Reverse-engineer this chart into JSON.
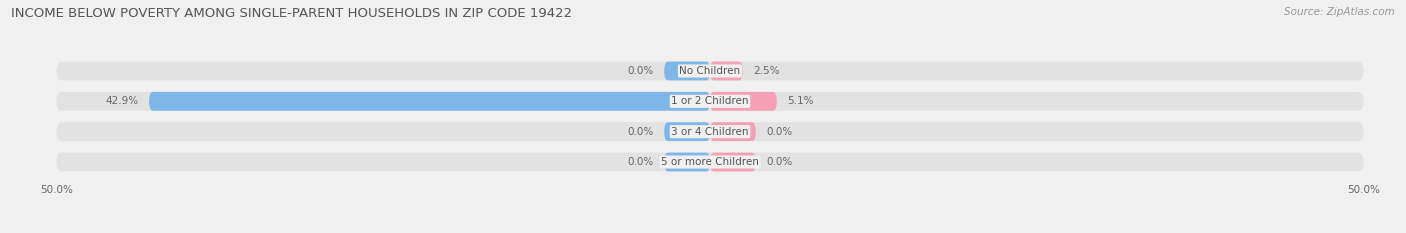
{
  "title": "INCOME BELOW POVERTY AMONG SINGLE-PARENT HOUSEHOLDS IN ZIP CODE 19422",
  "source": "Source: ZipAtlas.com",
  "categories": [
    "No Children",
    "1 or 2 Children",
    "3 or 4 Children",
    "5 or more Children"
  ],
  "single_father": [
    0.0,
    42.9,
    0.0,
    0.0
  ],
  "single_mother": [
    2.5,
    5.1,
    0.0,
    0.0
  ],
  "father_color": "#7EB6E8",
  "mother_color": "#F4A0B5",
  "axis_limit": 50.0,
  "bar_height": 0.62,
  "background_color": "#f0f0f0",
  "bar_bg_color": "#e2e2e2",
  "title_fontsize": 9.5,
  "label_fontsize": 7.5,
  "category_fontsize": 7.5,
  "source_fontsize": 7.5,
  "legend_fontsize": 8,
  "stub_size": 3.5
}
